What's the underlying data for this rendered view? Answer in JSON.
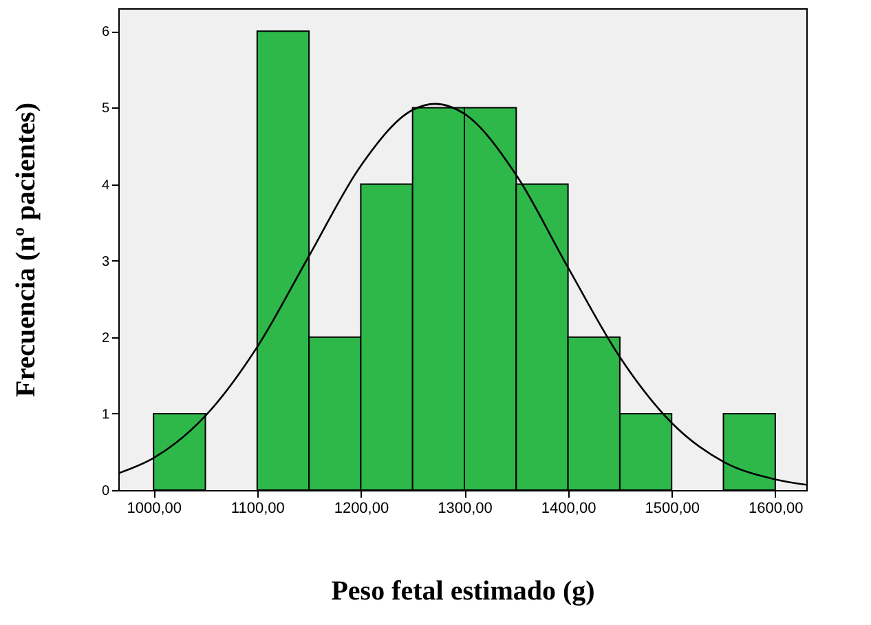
{
  "chart_data": {
    "type": "histogram",
    "xlabel": "Peso fetal estimado (g)",
    "ylabel": "Frecuencia (nº pacientes)",
    "bins": [
      1000,
      1050,
      1100,
      1150,
      1200,
      1250,
      1300,
      1350,
      1400,
      1450,
      1500,
      1550,
      1600
    ],
    "values": [
      1,
      0,
      6,
      2,
      4,
      5,
      5,
      4,
      2,
      1,
      0,
      1
    ],
    "color": "#2eb84a",
    "series": [
      {
        "type": "line",
        "color": "#000000",
        "x": [
          966,
          1000,
          1050,
          1100,
          1150,
          1200,
          1250,
          1272,
          1300,
          1350,
          1400,
          1450,
          1500,
          1550,
          1600,
          1630
        ],
        "values": [
          0.22,
          0.42,
          0.97,
          1.87,
          3.06,
          4.24,
          4.97,
          5.05,
          4.92,
          4.12,
          2.91,
          1.74,
          0.88,
          0.37,
          0.14,
          0.07
        ]
      }
    ],
    "xlim": [
      966,
      1630
    ],
    "ylim": [
      0,
      6.3
    ],
    "xticks": [
      {
        "value": 1000,
        "label": "1000,00"
      },
      {
        "value": 1100,
        "label": "1100,00"
      },
      {
        "value": 1200,
        "label": "1200,00"
      },
      {
        "value": 1300,
        "label": "1300,00"
      },
      {
        "value": 1400,
        "label": "1400,00"
      },
      {
        "value": 1500,
        "label": "1500,00"
      },
      {
        "value": 1600,
        "label": "1600,00"
      }
    ],
    "yticks": [
      0,
      1,
      2,
      3,
      4,
      5,
      6
    ],
    "grid": false
  }
}
